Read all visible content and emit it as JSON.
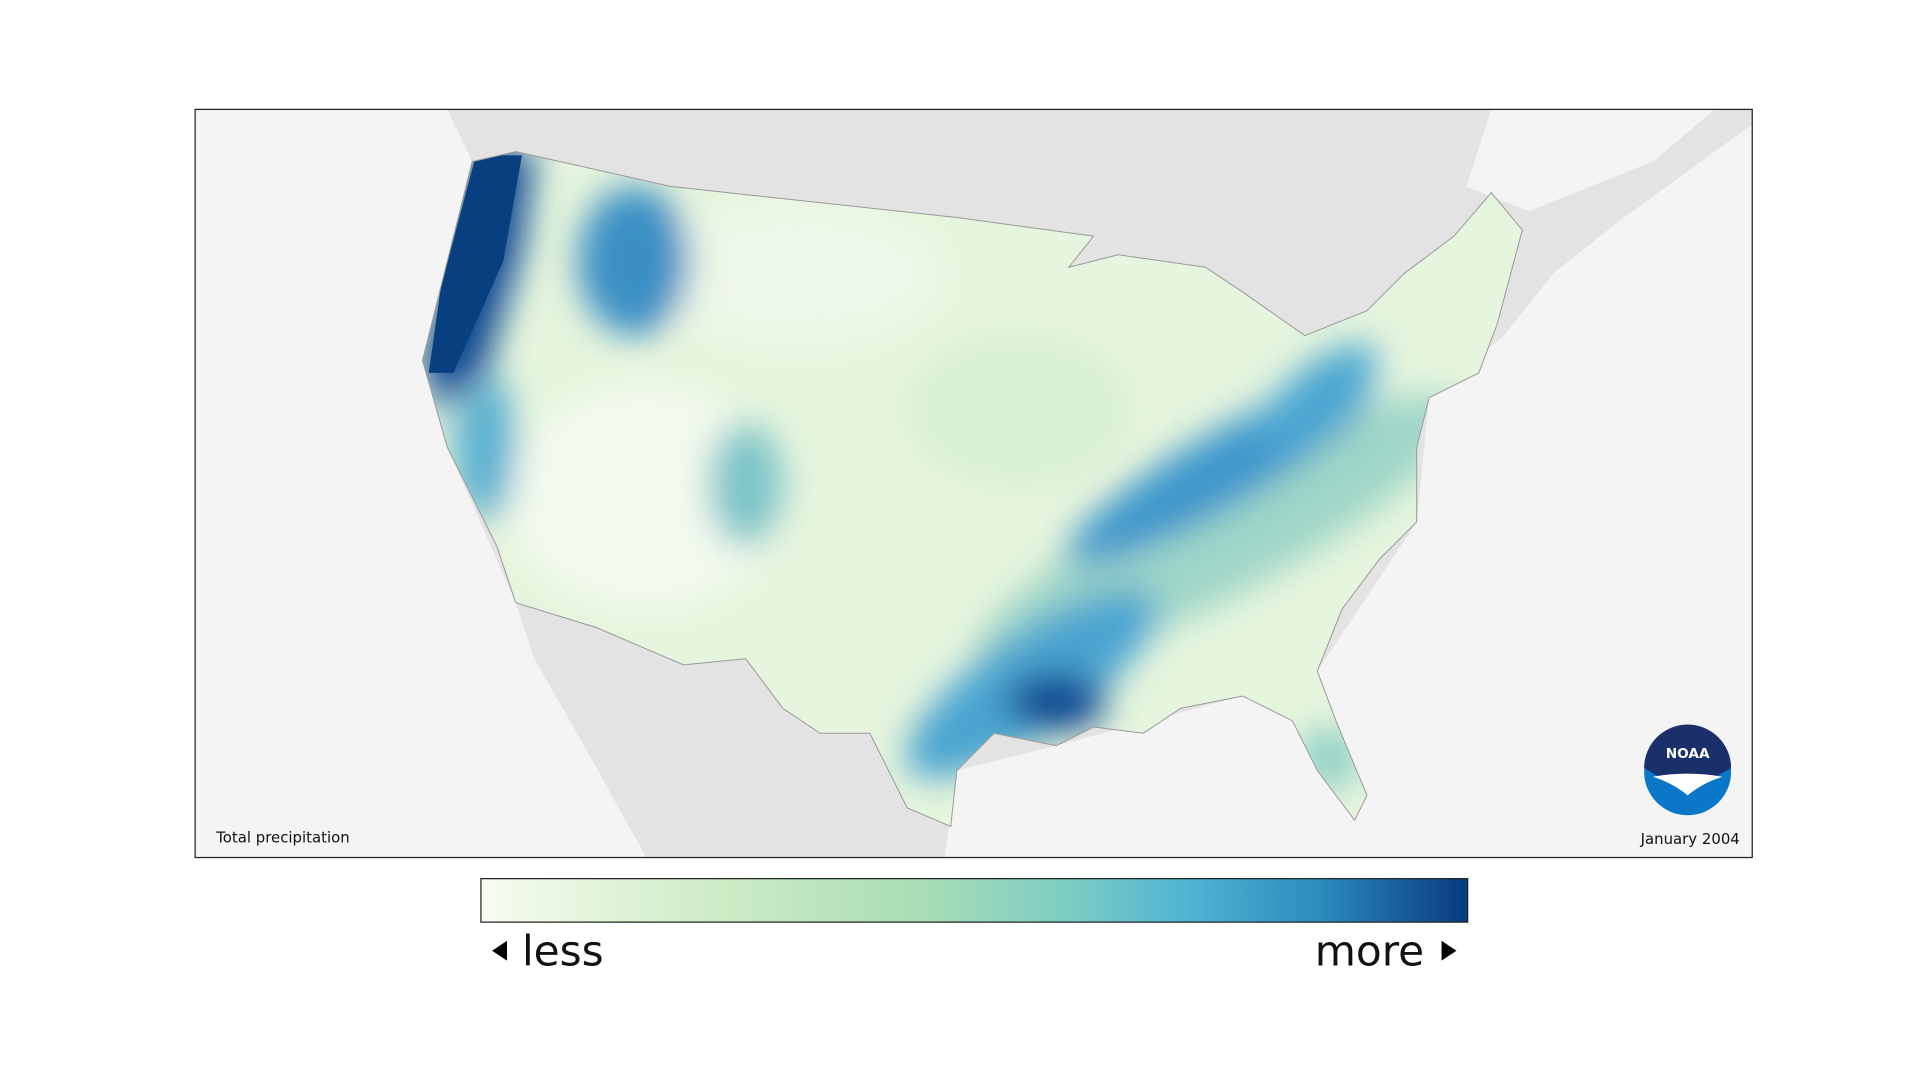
{
  "map": {
    "label": "Total precipitation",
    "date": "January 2004"
  },
  "legend": {
    "low": "less",
    "high": "more"
  },
  "logo": "NOAA"
}
